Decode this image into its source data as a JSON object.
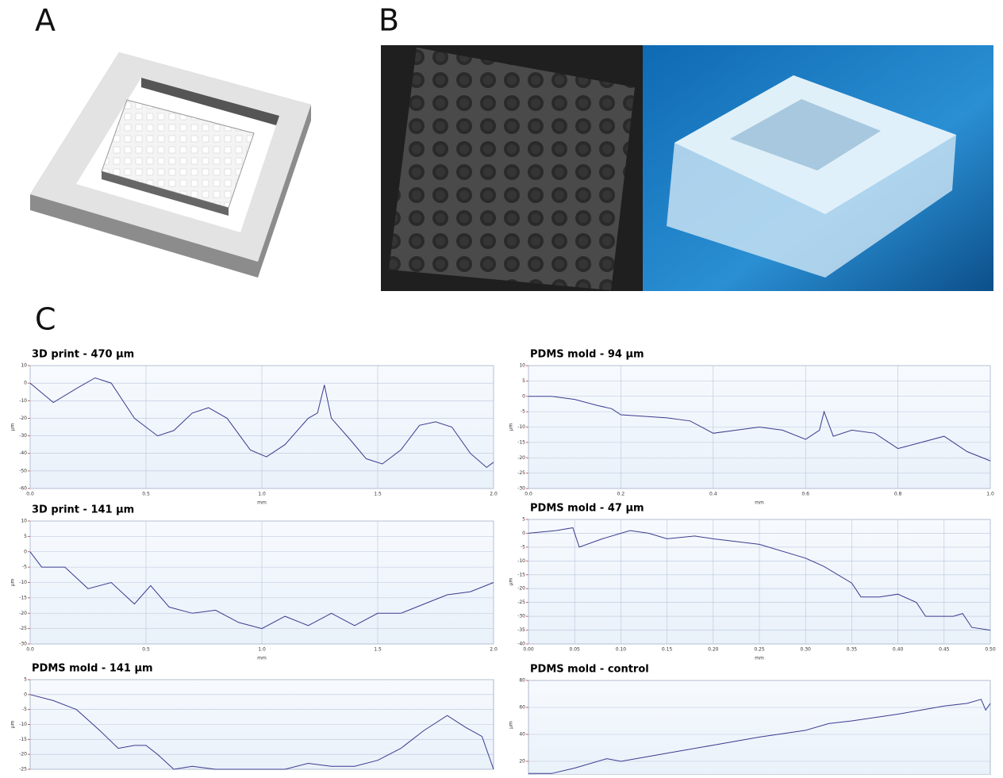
{
  "panels": [
    "A",
    "B",
    "C"
  ],
  "chart_data": [
    {
      "type": "line",
      "title": "3D print - 470 µm",
      "xlabel": "mm",
      "ylabel": "µm",
      "color": "#3b3b8e",
      "x": [
        0,
        0.1,
        0.2,
        0.28,
        0.35,
        0.45,
        0.55,
        0.62,
        0.7,
        0.77,
        0.85,
        0.95,
        1.02,
        1.1,
        1.2,
        1.24,
        1.27,
        1.3,
        1.38,
        1.45,
        1.52,
        1.6,
        1.68,
        1.75,
        1.82,
        1.9,
        1.97,
        2.0
      ],
      "values": [
        0,
        -11,
        -3,
        3,
        0,
        -20,
        -30,
        -27,
        -17,
        -14,
        -20,
        -38,
        -42,
        -35,
        -20,
        -17,
        -1,
        -20,
        -32,
        -43,
        -46,
        -38,
        -24,
        -22,
        -25,
        -40,
        -48,
        -45
      ],
      "xlim": [
        0,
        2
      ],
      "ylim": [
        -60,
        10
      ],
      "xticks": [
        {
          "value": 0,
          "label": "0.0"
        },
        0.5,
        {
          "value": 1,
          "label": "1.0"
        },
        1.5,
        {
          "value": 2,
          "label": "2.0"
        }
      ],
      "yticks": [
        10,
        0,
        -10,
        -20,
        -30,
        -40,
        -50,
        -60
      ],
      "grid": true
    },
    {
      "type": "line",
      "title": "PDMS mold - 94 µm",
      "xlabel": "mm",
      "ylabel": "µm",
      "color": "#3b3b8e",
      "x": [
        0,
        0.05,
        0.1,
        0.15,
        0.18,
        0.2,
        0.3,
        0.35,
        0.4,
        0.45,
        0.5,
        0.55,
        0.6,
        0.63,
        0.64,
        0.66,
        0.7,
        0.75,
        0.8,
        0.85,
        0.9,
        0.95,
        1.0
      ],
      "values": [
        0,
        0,
        -1,
        -3,
        -4,
        -6,
        -7,
        -8,
        -12,
        -11,
        -10,
        -11,
        -14,
        -11,
        -5,
        -13,
        -11,
        -12,
        -17,
        -15,
        -13,
        -18,
        -21
      ],
      "xlim": [
        0,
        1
      ],
      "ylim": [
        -30,
        10
      ],
      "xticks": [
        {
          "value": 0,
          "label": "0.0"
        },
        0.2,
        0.4,
        0.6,
        0.8,
        {
          "value": 1,
          "label": "1.0"
        }
      ],
      "yticks": [
        10,
        5,
        0,
        -5,
        -10,
        -15,
        -20,
        -25,
        -30
      ],
      "grid": true
    },
    {
      "type": "line",
      "title": "3D print - 141 µm",
      "xlabel": "mm",
      "ylabel": "µm",
      "color": "#3b3b8e",
      "x": [
        0,
        0.05,
        0.15,
        0.25,
        0.35,
        0.45,
        0.52,
        0.6,
        0.7,
        0.8,
        0.9,
        1.0,
        1.1,
        1.2,
        1.3,
        1.4,
        1.5,
        1.6,
        1.7,
        1.8,
        1.9,
        2.0
      ],
      "values": [
        0,
        -5,
        -5,
        -12,
        -10,
        -17,
        -11,
        -18,
        -20,
        -19,
        -23,
        -25,
        -21,
        -24,
        -20,
        -24,
        -20,
        -20,
        -17,
        -14,
        -13,
        -10
      ],
      "xlim": [
        0,
        2
      ],
      "ylim": [
        -30,
        10
      ],
      "xticks": [
        {
          "value": 0,
          "label": "0.0"
        },
        0.5,
        {
          "value": 1,
          "label": "1.0"
        },
        1.5,
        {
          "value": 2,
          "label": "2.0"
        }
      ],
      "yticks": [
        10,
        5,
        0,
        -5,
        -10,
        -15,
        -20,
        -25,
        -30
      ],
      "grid": true
    },
    {
      "type": "line",
      "title": "PDMS mold - 47 µm",
      "xlabel": "mm",
      "ylabel": "µm",
      "color": "#3b3b8e",
      "x": [
        0,
        0.03,
        0.048,
        0.055,
        0.08,
        0.11,
        0.13,
        0.15,
        0.18,
        0.2,
        0.25,
        0.3,
        0.32,
        0.35,
        0.36,
        0.38,
        0.4,
        0.42,
        0.43,
        0.46,
        0.47,
        0.48,
        0.5
      ],
      "values": [
        0,
        1,
        2,
        -5,
        -2,
        1,
        0,
        -2,
        -1,
        -2,
        -4,
        -9,
        -12,
        -18,
        -23,
        -23,
        -22,
        -25,
        -30,
        -30,
        -29,
        -34,
        -35
      ],
      "xlim": [
        0,
        0.5
      ],
      "ylim": [
        -40,
        5
      ],
      "xticks": [
        {
          "value": 0,
          "label": "0.00"
        },
        0.05,
        {
          "value": 0.1,
          "label": "0.10"
        },
        0.15,
        {
          "value": 0.2,
          "label": "0.20"
        },
        0.25,
        {
          "value": 0.3,
          "label": "0.30"
        },
        0.35,
        {
          "value": 0.4,
          "label": "0.40"
        },
        0.45,
        {
          "value": 0.5,
          "label": "0.50"
        }
      ],
      "yticks": [
        5,
        0,
        -5,
        -10,
        -15,
        -20,
        -25,
        -30,
        -35,
        -40
      ],
      "grid": true
    },
    {
      "type": "line",
      "title": "PDMS mold - 141 µm",
      "ylabel": "µm",
      "color": "#3b3b8e",
      "x": [
        0,
        0.1,
        0.2,
        0.3,
        0.38,
        0.45,
        0.5,
        0.55,
        0.62,
        0.7,
        0.8,
        0.9,
        1.1,
        1.2,
        1.3,
        1.4,
        1.5,
        1.6,
        1.7,
        1.8,
        1.88,
        1.95,
        2.0
      ],
      "values": [
        0,
        -2,
        -5,
        -12,
        -18,
        -17,
        -17,
        -20,
        -25,
        -24,
        -25,
        -25,
        -25,
        -23,
        -24,
        -24,
        -22,
        -18,
        -12,
        -7,
        -11,
        -14,
        -25
      ],
      "xlim": [
        0,
        2
      ],
      "ylim": [
        -25,
        5
      ],
      "yticks": [
        5,
        0,
        -5,
        -10,
        -15,
        -20,
        -25
      ],
      "grid": true
    },
    {
      "type": "line",
      "title": "PDMS mold - control",
      "ylabel": "µm",
      "color": "#3b3b8e",
      "x": [
        0,
        0.05,
        0.1,
        0.17,
        0.2,
        0.3,
        0.4,
        0.5,
        0.6,
        0.65,
        0.7,
        0.8,
        0.85,
        0.9,
        0.95,
        0.98,
        0.99,
        1.0
      ],
      "values": [
        11,
        11,
        15,
        22,
        20,
        26,
        32,
        38,
        43,
        48,
        50,
        55,
        58,
        61,
        63,
        66,
        58,
        63
      ],
      "xlim": [
        0,
        1
      ],
      "ylim": [
        10,
        80
      ],
      "yticks": [
        80,
        60,
        40,
        20
      ],
      "grid": true
    }
  ]
}
